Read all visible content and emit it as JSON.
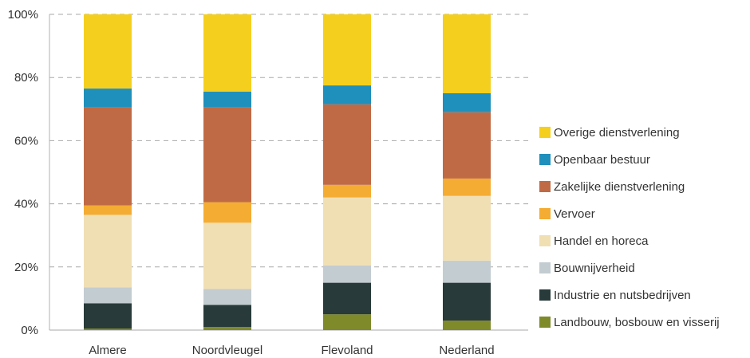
{
  "chart_data": {
    "type": "bar",
    "stacked": true,
    "title": "",
    "xlabel": "",
    "ylabel": "",
    "ylim": [
      0,
      100
    ],
    "yticks": [
      "0%",
      "20%",
      "40%",
      "60%",
      "80%",
      "100%"
    ],
    "grid": true,
    "legend_position": "right",
    "categories": [
      "Almere",
      "Noordvleugel",
      "Flevoland",
      "Nederland"
    ],
    "series": [
      {
        "name": "Landbouw, bosbouw en visserij",
        "color": "#7f8a2b",
        "values": [
          0.5,
          1,
          5,
          3
        ]
      },
      {
        "name": "Industrie en nutsbedrijven",
        "color": "#283a3a",
        "values": [
          8,
          7,
          10,
          12
        ]
      },
      {
        "name": "Bouwnijverheid",
        "color": "#c3ccd1",
        "values": [
          5,
          5,
          5.5,
          7
        ]
      },
      {
        "name": "Handel en horeca",
        "color": "#f1dfb4",
        "values": [
          23,
          21,
          21.5,
          20.5
        ]
      },
      {
        "name": "Vervoer",
        "color": "#f4ac33",
        "values": [
          3,
          6.5,
          4,
          5.5
        ]
      },
      {
        "name": "Zakelijke dienstverlening",
        "color": "#c06a45",
        "values": [
          31,
          30,
          25.5,
          21
        ]
      },
      {
        "name": "Openbaar bestuur",
        "color": "#1f8fbc",
        "values": [
          6,
          5,
          6,
          6
        ]
      },
      {
        "name": "Overige dienstverlening",
        "color": "#f5cf1d",
        "values": [
          23.5,
          24.5,
          22.5,
          25
        ]
      }
    ]
  }
}
